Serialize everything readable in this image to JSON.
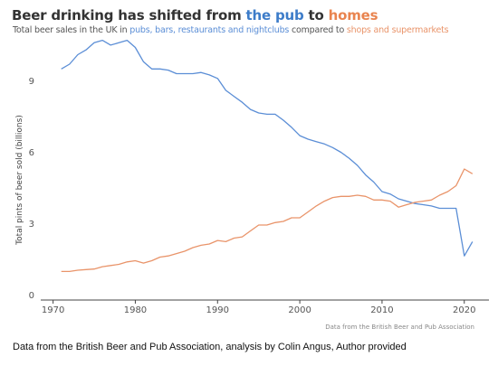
{
  "title": {
    "prefix": "Beer drinking has shifted from ",
    "hl1": "the pub",
    "mid": " to ",
    "hl2": "homes"
  },
  "subtitle": {
    "prefix": "Total beer sales in the UK in ",
    "hl1": "pubs, bars, restaurants and nightclubs",
    "mid": " compared to ",
    "hl2": "shops and supermarkets"
  },
  "colors": {
    "pub": "#5b8ed6",
    "home": "#e9946a",
    "axis": "#444444",
    "text": "#555555"
  },
  "source_note": "Data from the British Beer and Pub Association",
  "caption": "Data from the British Beer and Pub Association, analysis by Colin Angus, Author provided",
  "chart_data": {
    "type": "line",
    "title": "Beer drinking has shifted from the pub to homes",
    "ylabel": "Total pints of beer sold (billions)",
    "xlabel": "",
    "xlim": [
      1968.5,
      2023
    ],
    "ylim": [
      -0.2,
      10.8
    ],
    "x_ticks": [
      1970,
      1980,
      1990,
      2000,
      2010,
      2020
    ],
    "y_ticks": [
      0,
      3,
      6,
      9
    ],
    "grid": false,
    "legend": "none",
    "x": [
      1971,
      1972,
      1973,
      1974,
      1975,
      1976,
      1977,
      1978,
      1979,
      1980,
      1981,
      1982,
      1983,
      1984,
      1985,
      1986,
      1987,
      1988,
      1989,
      1990,
      1991,
      1992,
      1993,
      1994,
      1995,
      1996,
      1997,
      1998,
      1999,
      2000,
      2001,
      2002,
      2003,
      2004,
      2005,
      2006,
      2007,
      2008,
      2009,
      2010,
      2011,
      2012,
      2013,
      2014,
      2015,
      2016,
      2017,
      2018,
      2019,
      2020,
      2021
    ],
    "series": [
      {
        "key": "pub",
        "values": [
          9.5,
          9.7,
          10.1,
          10.3,
          10.6,
          10.7,
          10.5,
          10.6,
          10.7,
          10.4,
          9.8,
          9.5,
          9.5,
          9.45,
          9.3,
          9.3,
          9.3,
          9.35,
          9.25,
          9.1,
          8.6,
          8.35,
          8.1,
          7.8,
          7.65,
          7.6,
          7.6,
          7.35,
          7.05,
          6.7,
          6.55,
          6.45,
          6.35,
          6.2,
          6.0,
          5.75,
          5.45,
          5.05,
          4.75,
          4.35,
          4.25,
          4.05,
          3.95,
          3.85,
          3.8,
          3.75,
          3.65,
          3.65,
          3.65,
          1.65,
          2.25
        ]
      },
      {
        "key": "home",
        "values": [
          1.0,
          1.0,
          1.05,
          1.08,
          1.1,
          1.2,
          1.25,
          1.3,
          1.4,
          1.45,
          1.35,
          1.45,
          1.6,
          1.65,
          1.75,
          1.85,
          2.0,
          2.1,
          2.15,
          2.3,
          2.25,
          2.4,
          2.45,
          2.7,
          2.95,
          2.95,
          3.05,
          3.1,
          3.25,
          3.25,
          3.5,
          3.75,
          3.95,
          4.1,
          4.15,
          4.15,
          4.2,
          4.15,
          4.0,
          4.0,
          3.95,
          3.7,
          3.8,
          3.9,
          3.95,
          4.0,
          4.2,
          4.35,
          4.6,
          5.3,
          5.1
        ]
      }
    ]
  }
}
